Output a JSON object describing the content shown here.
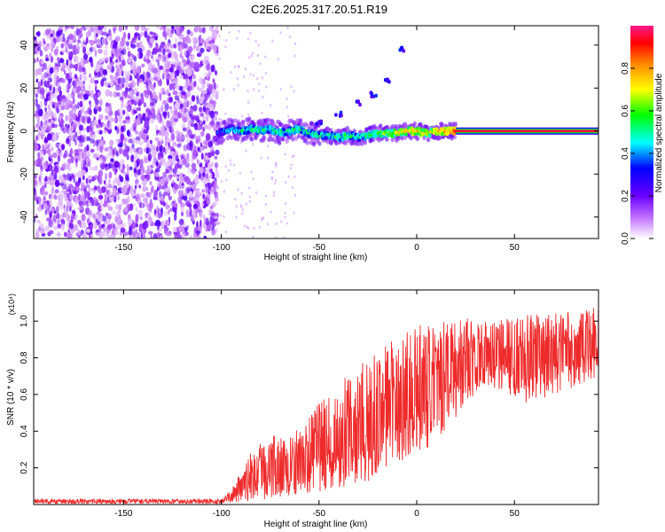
{
  "title": "C2E6.2025.317.20.51.R19",
  "chart_data": [
    {
      "type": "heatmap",
      "xlabel": "Height of straight line (km)",
      "ylabel": "Frequency (Hz)",
      "xlim": [
        -196,
        93
      ],
      "ylim": [
        -50,
        49
      ],
      "xticks": [
        -150,
        -100,
        -50,
        0,
        50
      ],
      "yticks": [
        -40,
        -20,
        0,
        20,
        40
      ],
      "noise_region": [
        -196,
        -102
      ],
      "ridge": [
        {
          "x": -102,
          "y": -1,
          "a": 0.35
        },
        {
          "x": -95,
          "y": 1,
          "a": 0.45
        },
        {
          "x": -90,
          "y": 0,
          "a": 0.5
        },
        {
          "x": -85,
          "y": 1,
          "a": 0.55
        },
        {
          "x": -80,
          "y": 0,
          "a": 0.55
        },
        {
          "x": -75,
          "y": 1,
          "a": 0.5
        },
        {
          "x": -70,
          "y": -1,
          "a": 0.55
        },
        {
          "x": -65,
          "y": 0,
          "a": 0.5
        },
        {
          "x": -60,
          "y": 1,
          "a": 0.55
        },
        {
          "x": -55,
          "y": -1,
          "a": 0.5
        },
        {
          "x": -50,
          "y": -2,
          "a": 0.5
        },
        {
          "x": -45,
          "y": -2,
          "a": 0.5
        },
        {
          "x": -40,
          "y": -3,
          "a": 0.55
        },
        {
          "x": -35,
          "y": -2,
          "a": 0.55
        },
        {
          "x": -30,
          "y": -3,
          "a": 0.5
        },
        {
          "x": -25,
          "y": -2,
          "a": 0.55
        },
        {
          "x": -20,
          "y": -1,
          "a": 0.6
        },
        {
          "x": -15,
          "y": -1,
          "a": 0.65
        },
        {
          "x": -10,
          "y": -1,
          "a": 0.7
        },
        {
          "x": -5,
          "y": 0,
          "a": 0.75
        },
        {
          "x": 0,
          "y": 0,
          "a": 0.75
        },
        {
          "x": 5,
          "y": -1,
          "a": 0.7
        },
        {
          "x": 10,
          "y": 0,
          "a": 0.75
        },
        {
          "x": 15,
          "y": 0,
          "a": 0.8
        },
        {
          "x": 20,
          "y": 0,
          "a": 0.9
        }
      ],
      "harmonic": [
        {
          "x": -50,
          "y": 4
        },
        {
          "x": -40,
          "y": 8
        },
        {
          "x": -30,
          "y": 13
        },
        {
          "x": -22,
          "y": 17
        },
        {
          "x": -15,
          "y": 23
        },
        {
          "x": -8,
          "y": 38
        }
      ],
      "carrier": {
        "x_start": 20,
        "x_end": 93,
        "y": 0,
        "amplitude": 0.95
      },
      "colorbar": {
        "label": "Normalized spectral amplitude",
        "range": [
          0,
          1
        ],
        "ticks": [
          "0.0",
          "0.2",
          "0.4",
          "0.6",
          "0.8"
        ],
        "tick_values": [
          0,
          0.2,
          0.4,
          0.6,
          0.8
        ]
      }
    },
    {
      "type": "line",
      "xlabel": "Height of straight line (km)",
      "ylabel": "SNR (10 * v/v)",
      "scale_label": "(x10⁴)",
      "xlim": [
        -196,
        93
      ],
      "ylim": [
        0,
        1.17
      ],
      "xticks": [
        -150,
        -100,
        -50,
        0,
        50
      ],
      "yticks": [
        0.2,
        0.4,
        0.6,
        0.8,
        1.0
      ],
      "ytick_labels": [
        "0.2",
        "0.4",
        "0.6",
        "0.8",
        "1.0"
      ],
      "color": "#ee2a2a",
      "envelope": [
        {
          "x": -196,
          "min": 0.005,
          "max": 0.03
        },
        {
          "x": -100,
          "min": 0.005,
          "max": 0.03
        },
        {
          "x": -95,
          "min": 0.01,
          "max": 0.08
        },
        {
          "x": -85,
          "min": 0.02,
          "max": 0.28
        },
        {
          "x": -75,
          "min": 0.03,
          "max": 0.38
        },
        {
          "x": -65,
          "min": 0.05,
          "max": 0.36
        },
        {
          "x": -55,
          "min": 0.06,
          "max": 0.5
        },
        {
          "x": -45,
          "min": 0.08,
          "max": 0.62
        },
        {
          "x": -35,
          "min": 0.1,
          "max": 0.72
        },
        {
          "x": -25,
          "min": 0.12,
          "max": 0.8
        },
        {
          "x": -15,
          "min": 0.2,
          "max": 0.88
        },
        {
          "x": -5,
          "min": 0.25,
          "max": 0.95
        },
        {
          "x": 5,
          "min": 0.3,
          "max": 1.0
        },
        {
          "x": 15,
          "min": 0.4,
          "max": 1.0
        },
        {
          "x": 25,
          "min": 0.55,
          "max": 1.02
        },
        {
          "x": 35,
          "min": 0.65,
          "max": 1.0
        },
        {
          "x": 45,
          "min": 0.6,
          "max": 1.02
        },
        {
          "x": 55,
          "min": 0.55,
          "max": 1.03
        },
        {
          "x": 65,
          "min": 0.58,
          "max": 1.05
        },
        {
          "x": 75,
          "min": 0.62,
          "max": 1.05
        },
        {
          "x": 85,
          "min": 0.65,
          "max": 1.05
        },
        {
          "x": 93,
          "min": 0.7,
          "max": 1.1
        }
      ]
    }
  ]
}
